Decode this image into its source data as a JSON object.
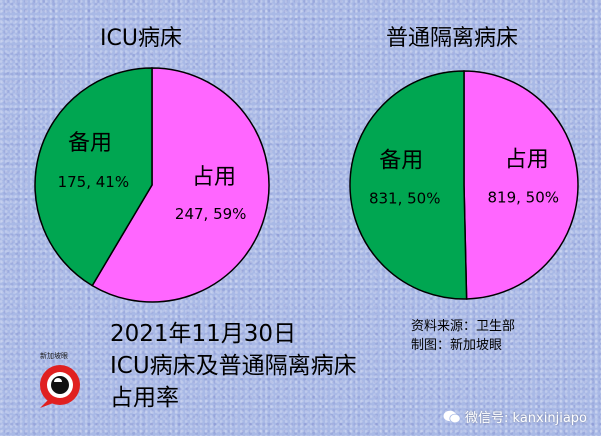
{
  "chart_data": [
    {
      "type": "pie",
      "title": "ICU病床",
      "slices": [
        {
          "name": "备用",
          "value": 175,
          "percent": "41%",
          "label": "175, 41%",
          "color": "#00a651"
        },
        {
          "name": "占用",
          "value": 247,
          "percent": "59%",
          "label": "247, 59%",
          "color": "#ff66ff"
        }
      ]
    },
    {
      "type": "pie",
      "title": "普通隔离病床",
      "slices": [
        {
          "name": "备用",
          "value": 831,
          "percent": "50%",
          "label": "831, 50%",
          "color": "#00a651"
        },
        {
          "name": "占用",
          "value": 819,
          "percent": "50%",
          "label": "819, 50%",
          "color": "#ff66ff"
        }
      ]
    }
  ],
  "caption": {
    "line1": "2021年11月30日",
    "line2": "ICU病床及普通隔离病床",
    "line3": "占用率"
  },
  "source": {
    "line1": "资料来源：卫生部",
    "line2": "制图：新加坡眼"
  },
  "logo_text": "新加坡眼",
  "watermark": "微信号: kanxinjiapo"
}
